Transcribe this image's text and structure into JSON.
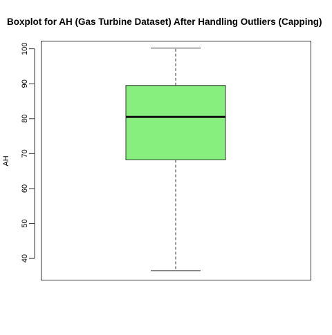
{
  "chart_data": {
    "type": "boxplot",
    "title": "Boxplot for AH (Gas Turbine Dataset) After Handling Outliers (Capping)",
    "xlabel": "",
    "ylabel": "AH",
    "ylim": [
      33.8,
      102.2
    ],
    "yticks": [
      40,
      50,
      60,
      70,
      80,
      90,
      100
    ],
    "grid": false,
    "legend": "none",
    "box": {
      "min": 36.5,
      "q1": 68.2,
      "median": 80.5,
      "q3": 89.5,
      "max": 100.2
    },
    "colors": {
      "box_fill": "#86ef7d",
      "box_stroke": "#333333",
      "median_line": "#111111",
      "whisker": "#333333",
      "frame": "#333333"
    }
  }
}
